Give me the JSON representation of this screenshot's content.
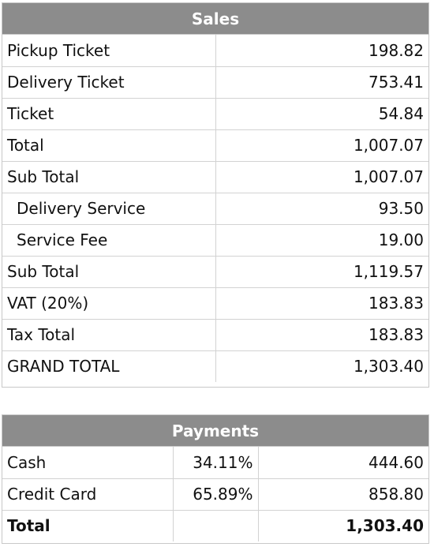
{
  "sales": {
    "title": "Sales",
    "rows": [
      {
        "label": "Pickup Ticket",
        "value": "198.82",
        "indent": false
      },
      {
        "label": "Delivery Ticket",
        "value": "753.41",
        "indent": false
      },
      {
        "label": "Ticket",
        "value": "54.84",
        "indent": false
      },
      {
        "label": "Total",
        "value": "1,007.07",
        "indent": false
      },
      {
        "label": "Sub Total",
        "value": "1,007.07",
        "indent": false
      },
      {
        "label": "Delivery Service",
        "value": "93.50",
        "indent": true
      },
      {
        "label": "Service Fee",
        "value": "19.00",
        "indent": true
      },
      {
        "label": "Sub Total",
        "value": "1,119.57",
        "indent": false
      },
      {
        "label": "VAT (20%)",
        "value": "183.83",
        "indent": false
      },
      {
        "label": "Tax Total",
        "value": "183.83",
        "indent": false
      },
      {
        "label": "GRAND TOTAL",
        "value": "1,303.40",
        "indent": false
      }
    ]
  },
  "payments": {
    "title": "Payments",
    "rows": [
      {
        "label": "Cash",
        "percent": "34.11%",
        "value": "444.60"
      },
      {
        "label": "Credit Card",
        "percent": "65.89%",
        "value": "858.80"
      }
    ],
    "total": {
      "label": "Total",
      "percent": "",
      "value": "1,303.40"
    }
  },
  "colors": {
    "header_background": "#8c8c8c",
    "header_text": "#ffffff",
    "grid_line": "#d2d2d2"
  }
}
